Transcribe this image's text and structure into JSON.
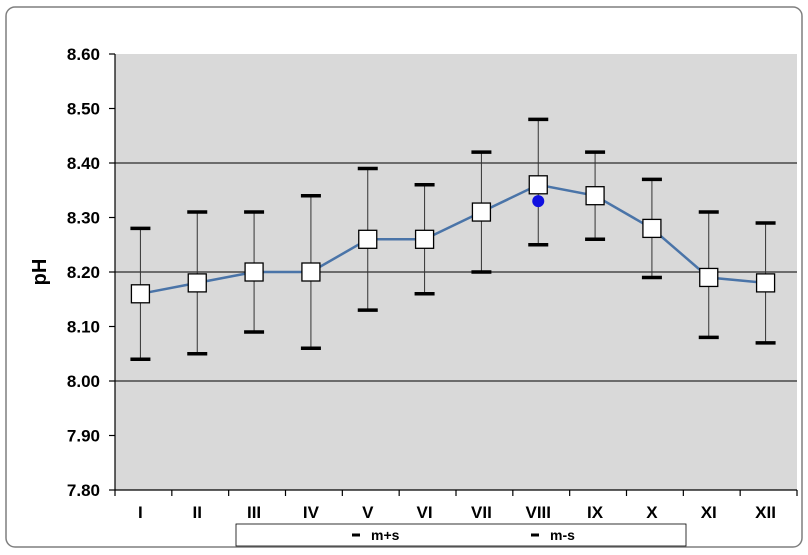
{
  "chart_data": {
    "type": "line",
    "ylabel": "pH",
    "ylim": [
      7.8,
      8.6
    ],
    "y_ticks": [
      "7.80",
      "7.90",
      "8.00",
      "8.10",
      "8.20",
      "8.30",
      "8.40",
      "8.50",
      "8.60"
    ],
    "categories": [
      "I",
      "II",
      "III",
      "IV",
      "V",
      "VI",
      "VII",
      "VIII",
      "IX",
      "X",
      "XI",
      "XII"
    ],
    "grid": "horizontal lines at 8.00, 8.20, 8.40",
    "series": [
      {
        "values": [
          8.16,
          8.18,
          8.2,
          8.2,
          8.26,
          8.26,
          8.31,
          8.36,
          8.34,
          8.28,
          8.19,
          8.18
        ]
      },
      {
        "name": "m+s",
        "values": [
          8.28,
          8.31,
          8.31,
          8.34,
          8.39,
          8.36,
          8.42,
          8.48,
          8.42,
          8.37,
          8.31,
          8.29
        ]
      },
      {
        "name": "m-s",
        "values": [
          8.04,
          8.05,
          8.09,
          8.06,
          8.13,
          8.16,
          8.2,
          8.25,
          8.26,
          8.19,
          8.08,
          8.07
        ]
      }
    ],
    "extra_points": [
      {
        "category": "VIII",
        "value": 8.33,
        "color": "#1010e0"
      }
    ],
    "legend": {
      "placement": "bottom",
      "entries": [
        "m+s",
        "m-s"
      ]
    },
    "colors": {
      "line": "#4a74a8",
      "plot_bg": "#d9d9d9",
      "marker_fill": "#ffffff",
      "dot": "#1010e0"
    }
  }
}
